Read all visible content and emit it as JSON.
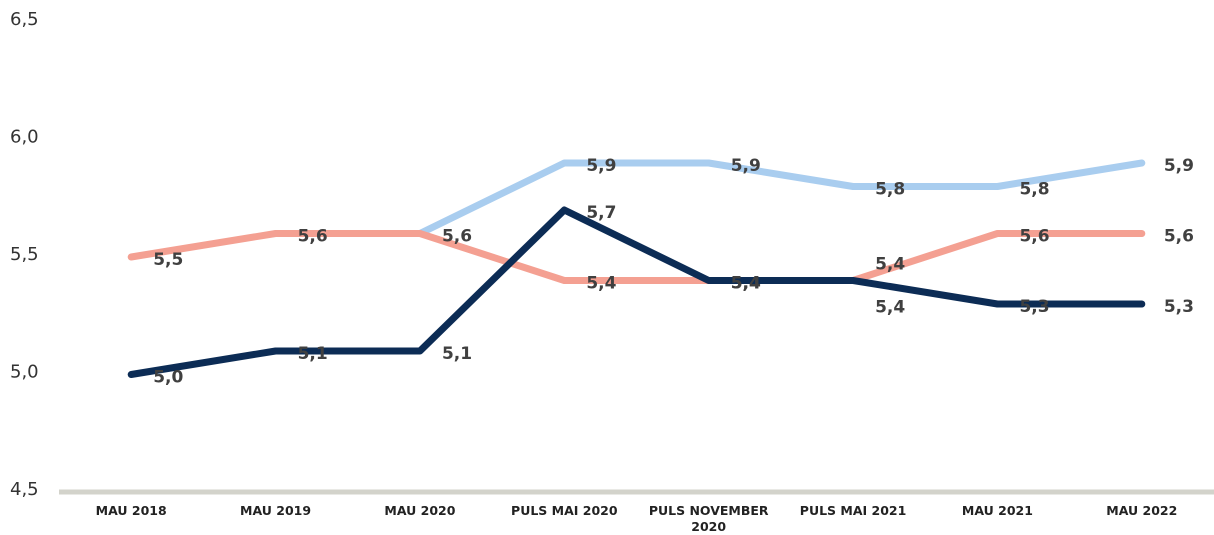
{
  "chart_data": {
    "type": "line",
    "categories": [
      "MAU 2018",
      "MAU 2019",
      "MAU 2020",
      "PULS MAI 2020",
      "PULS NOVEMBER 2020",
      "PULS MAI 2021",
      "MAU 2021",
      "MAU 2022"
    ],
    "series": [
      {
        "color": "#a9cdef",
        "values": [
          null,
          null,
          5.6,
          5.9,
          5.9,
          5.8,
          5.8,
          5.9
        ],
        "value_labels": [
          null,
          null,
          null,
          "5,9",
          "5,9",
          "5,8",
          "5,8",
          "5,9"
        ]
      },
      {
        "color": "#f4a092",
        "values": [
          5.5,
          5.6,
          5.6,
          5.4,
          5.4,
          5.4,
          5.6,
          5.6
        ],
        "value_labels": [
          "5,5",
          "5,6",
          "5,6",
          "5,4",
          "5,4",
          "5,4",
          "5,6",
          "5,6"
        ]
      },
      {
        "color": "#0c2c55",
        "values": [
          5.0,
          5.1,
          5.1,
          5.7,
          5.4,
          5.4,
          5.3,
          5.3
        ],
        "value_labels": [
          "5,0",
          "5,1",
          "5,1",
          "5,7",
          "5,4",
          "5,4",
          "5,3",
          "5,3"
        ]
      }
    ],
    "ylim": [
      4.5,
      6.5
    ],
    "yticks": [
      {
        "value": 4.5,
        "label": "4,5"
      },
      {
        "value": 5.0,
        "label": "5,0"
      },
      {
        "value": 5.5,
        "label": "5,5"
      },
      {
        "value": 6.0,
        "label": "6,0"
      },
      {
        "value": 6.5,
        "label": "6,5"
      }
    ]
  }
}
